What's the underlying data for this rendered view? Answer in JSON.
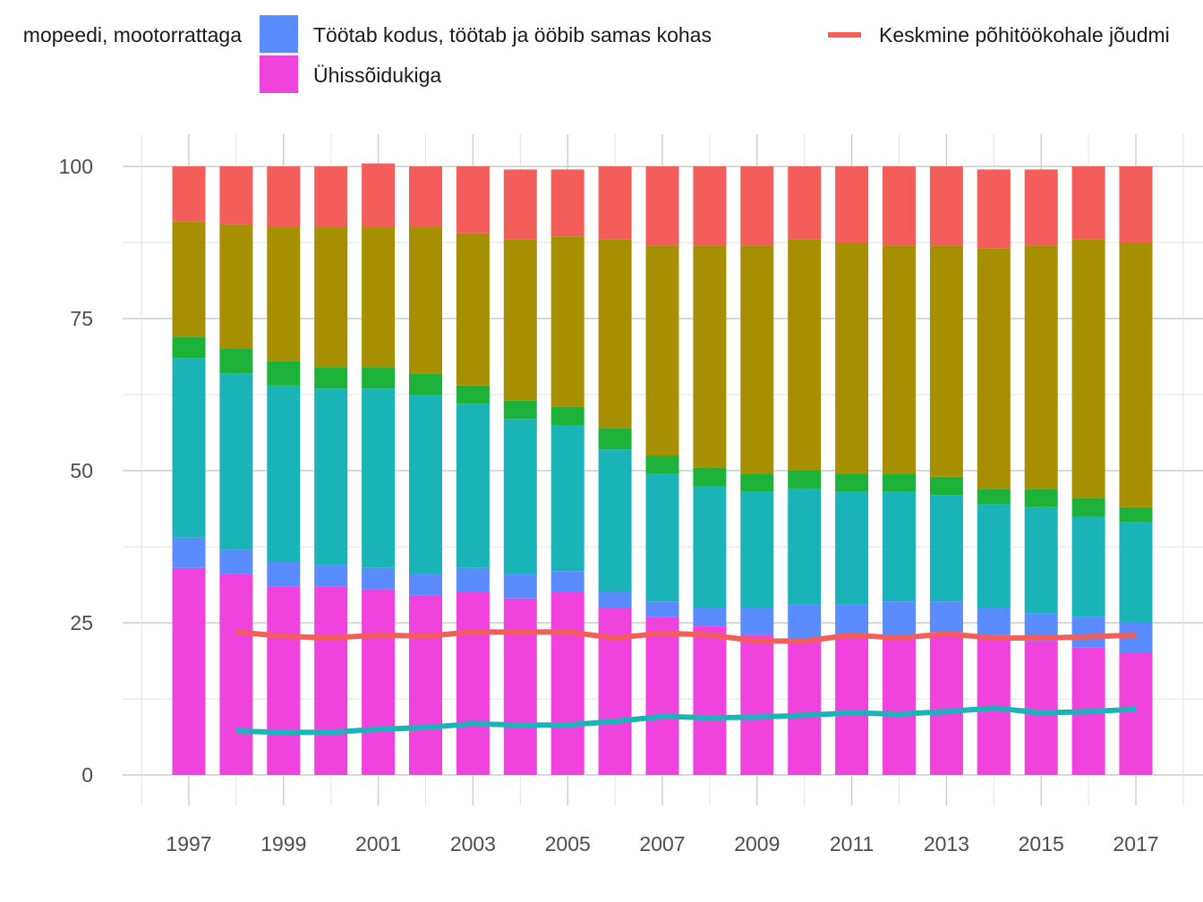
{
  "chart_data": {
    "type": "bar",
    "stacked": true,
    "x": [
      1997,
      1998,
      1999,
      2000,
      2001,
      2002,
      2003,
      2004,
      2005,
      2006,
      2007,
      2008,
      2009,
      2010,
      2011,
      2012,
      2013,
      2014,
      2015,
      2016,
      2017
    ],
    "x_tick_labels": [
      "1997",
      "1999",
      "2001",
      "2003",
      "2005",
      "2007",
      "2009",
      "2011",
      "2013",
      "2015",
      "2017"
    ],
    "y_tick_labels": [
      "0",
      "25",
      "50",
      "75",
      "100"
    ],
    "ylim": [
      -5,
      105
    ],
    "grid": true,
    "legend_position": "top",
    "series": [
      {
        "name": "Ühissõidukiga",
        "color": "#f042dc",
        "values": [
          34,
          33,
          31,
          31,
          30.5,
          29.5,
          30,
          29,
          30,
          27.5,
          26,
          24.5,
          23,
          22.5,
          22.5,
          22.5,
          23.5,
          23,
          22,
          21,
          20
        ]
      },
      {
        "name": "Töötab kodus, töötab ja ööbib samas kohas",
        "color": "#5a8cff",
        "values": [
          5,
          4,
          4,
          3.5,
          3.5,
          3.5,
          4,
          4,
          3.5,
          2.5,
          2.5,
          3,
          4.5,
          5.5,
          5.5,
          6,
          5,
          4.5,
          4.5,
          5,
          5
        ]
      },
      {
        "name": "",
        "color": "#1ab4b8",
        "values": [
          29.5,
          29,
          29,
          29,
          29.5,
          29.5,
          27,
          25.5,
          24,
          23.5,
          21,
          20,
          19,
          19,
          18.5,
          18,
          17.5,
          17,
          17.5,
          16.5,
          16.5
        ]
      },
      {
        "name": "",
        "color": "#1db33a",
        "values": [
          3.5,
          4,
          4,
          3.5,
          3.5,
          3.5,
          3,
          3,
          3,
          3.5,
          3,
          3,
          3,
          3,
          3,
          3,
          3,
          2.5,
          3,
          3,
          2.5
        ]
      },
      {
        "name": "",
        "color": "#a68f00",
        "values": [
          19,
          20.5,
          22,
          23,
          23,
          24,
          25,
          26.5,
          28,
          31,
          34.5,
          36.5,
          37.5,
          38,
          38,
          37.5,
          38,
          39.5,
          40,
          42.5,
          43.5
        ]
      },
      {
        "name": "",
        "color": "#f35e5a",
        "values": [
          9,
          9.5,
          10,
          10,
          10.5,
          10,
          11,
          11.5,
          11,
          12,
          13,
          13,
          13,
          12,
          12.5,
          13,
          13,
          13,
          12.5,
          12,
          12.5
        ]
      }
    ],
    "lines": [
      {
        "name": "Keskmine põhitöökohale jõudmi",
        "color": "#f35e5a",
        "x": [
          1998,
          1999,
          2000,
          2001,
          2002,
          2003,
          2004,
          2005,
          2006,
          2007,
          2008,
          2009,
          2010,
          2011,
          2012,
          2013,
          2014,
          2015,
          2016,
          2017
        ],
        "values": [
          23.5,
          22.8,
          22.5,
          23,
          22.8,
          23.5,
          23.5,
          23.5,
          22.5,
          23.3,
          23,
          22,
          22,
          23,
          22.5,
          23.2,
          22.5,
          22.5,
          22.7,
          23
        ]
      },
      {
        "name": "",
        "color": "#1ab4b8",
        "x": [
          1998,
          1999,
          2000,
          2001,
          2002,
          2003,
          2004,
          2005,
          2006,
          2007,
          2008,
          2009,
          2010,
          2011,
          2012,
          2013,
          2014,
          2015,
          2016,
          2017
        ],
        "values": [
          7.2,
          7,
          7,
          7.5,
          7.8,
          8.4,
          8.2,
          8.2,
          8.8,
          9.6,
          9.4,
          9.5,
          9.8,
          10.2,
          10,
          10.4,
          11,
          10.2,
          10.4,
          10.8
        ]
      }
    ],
    "legend": [
      {
        "label": "mopeedi, mootorrattaga",
        "color": "",
        "kind": "none"
      },
      {
        "label": "Töötab kodus, töötab ja ööbib samas kohas",
        "color": "#5a8cff",
        "kind": "box"
      },
      {
        "label": "Ühissõidukiga",
        "color": "#f042dc",
        "kind": "box"
      },
      {
        "label": "Keskmine põhitöökohale jõudmi",
        "color": "#f35e5a",
        "kind": "line"
      }
    ]
  }
}
